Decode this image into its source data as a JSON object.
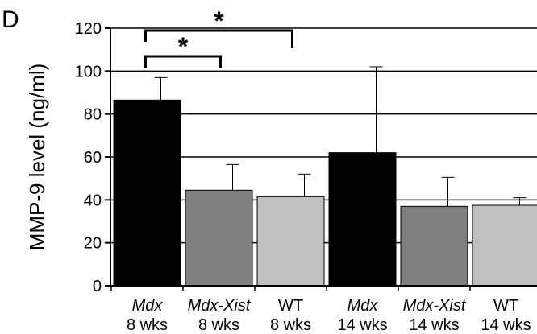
{
  "panel_label": "D",
  "chart_data": {
    "type": "bar",
    "title": "",
    "ylabel": "MMP-9 level (ng/ml)",
    "xlabel": "",
    "ylim": [
      0,
      120
    ],
    "yticks": [
      0,
      20,
      40,
      60,
      80,
      100,
      120
    ],
    "grid": true,
    "legend": "none",
    "categories": [
      {
        "strain": "Mdx",
        "age": "8 wks",
        "italic": true,
        "color": "#000000"
      },
      {
        "strain": "Mdx-Xist",
        "age": "8 wks",
        "italic": true,
        "color": "#808080"
      },
      {
        "strain": "WT",
        "age": "8 wks",
        "italic": false,
        "color": "#c0c0c0"
      },
      {
        "strain": "Mdx",
        "age": "14 wks",
        "italic": true,
        "color": "#000000"
      },
      {
        "strain": "Mdx-Xist",
        "age": "14 wks",
        "italic": true,
        "color": "#808080"
      },
      {
        "strain": "WT",
        "age": "14 wks",
        "italic": false,
        "color": "#c0c0c0"
      }
    ],
    "values": [
      86.5,
      44.5,
      41.5,
      62,
      37,
      37.5
    ],
    "errors": [
      10.5,
      12,
      10.5,
      40,
      13.5,
      3.5
    ],
    "significance": [
      {
        "from": 0,
        "to": 1,
        "label": "*"
      },
      {
        "from": 0,
        "to": 2,
        "label": "*"
      }
    ]
  }
}
